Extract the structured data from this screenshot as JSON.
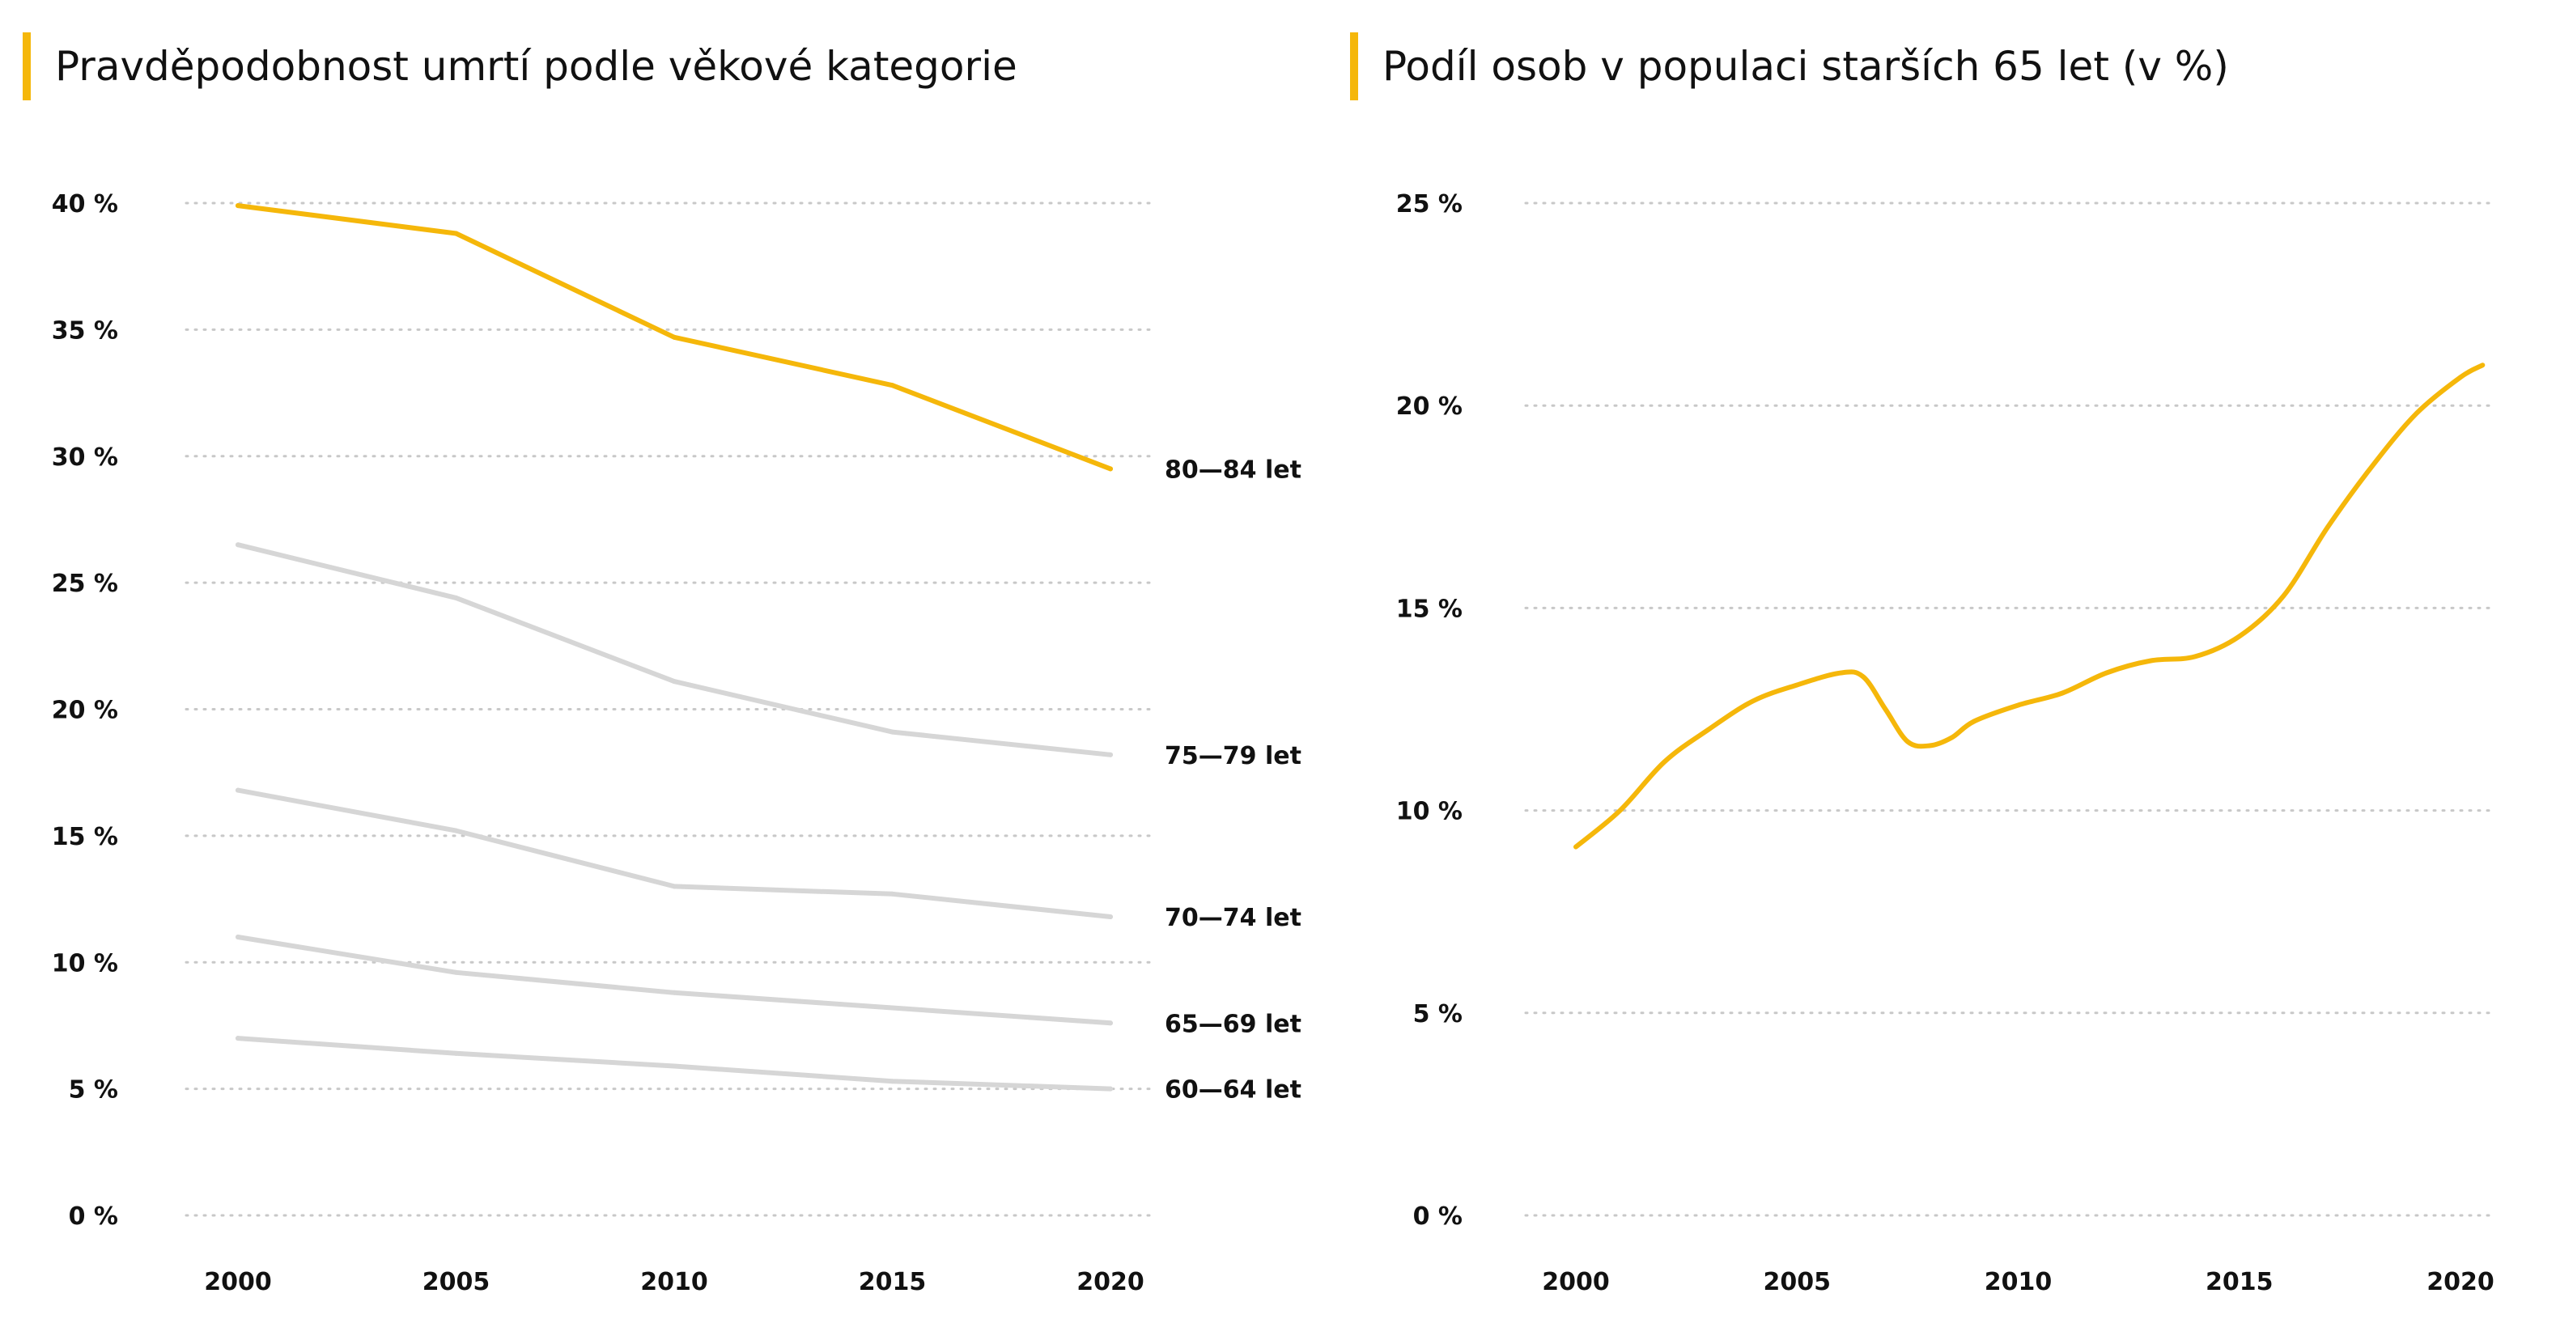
{
  "colors": {
    "accent": "#f5b70a",
    "muted": "#d6d6d6",
    "grid": "#c8c8c8",
    "text": "#111111"
  },
  "chart_data": [
    {
      "type": "line",
      "title": "Pravděpodobnost umrtí podle věkové kategorie",
      "x": [
        2000,
        2005,
        2010,
        2015,
        2020
      ],
      "ytick_labels": [
        "0 %",
        "5 %",
        "10 %",
        "15 %",
        "20 %",
        "25 %",
        "30 %",
        "35 %",
        "40 %"
      ],
      "xtick_labels": [
        "2000",
        "2005",
        "2010",
        "2015",
        "2020"
      ],
      "ylim": [
        0,
        40
      ],
      "grid": true,
      "series": [
        {
          "name": "80–84 let",
          "label": "80—84 let",
          "highlight": true,
          "values": [
            39.9,
            38.8,
            34.7,
            32.8,
            29.5
          ]
        },
        {
          "name": "75–79 let",
          "label": "75—79 let",
          "highlight": false,
          "values": [
            26.5,
            24.4,
            21.1,
            19.1,
            18.2
          ]
        },
        {
          "name": "70–74 let",
          "label": "70—74 let",
          "highlight": false,
          "values": [
            16.8,
            15.2,
            13.0,
            12.7,
            11.8
          ]
        },
        {
          "name": "65–69 let",
          "label": "65—69 let",
          "highlight": false,
          "values": [
            11.0,
            9.6,
            8.8,
            8.2,
            7.6
          ]
        },
        {
          "name": "60–64 let",
          "label": "60—64 let",
          "highlight": false,
          "values": [
            7.0,
            6.4,
            5.9,
            5.3,
            5.0
          ]
        }
      ]
    },
    {
      "type": "line",
      "title": "Podíl osob v populaci starších 65 let (v %)",
      "ytick_labels": [
        "0 %",
        "5 %",
        "10 %",
        "15 %",
        "20 %",
        "25 %"
      ],
      "xtick_labels": [
        "2000",
        "2005",
        "2010",
        "2015",
        "2020"
      ],
      "ylim": [
        0,
        25
      ],
      "xlim": [
        1999,
        2021
      ],
      "grid": true,
      "series": [
        {
          "x": [
            2000,
            2001,
            2002,
            2003,
            2004,
            2005,
            2006,
            2006.5,
            2007,
            2007.5,
            2008,
            2008.5,
            2009,
            2010,
            2011,
            2012,
            2013,
            2014,
            2015,
            2016,
            2017,
            2018,
            2019,
            2020,
            2020.5
          ],
          "values": [
            9.1,
            10.0,
            11.2,
            12.0,
            12.7,
            13.1,
            13.4,
            13.3,
            12.5,
            11.7,
            11.6,
            11.8,
            12.2,
            12.6,
            12.9,
            13.4,
            13.7,
            13.8,
            14.3,
            15.3,
            17.0,
            18.5,
            19.8,
            20.7,
            21.0
          ]
        }
      ]
    }
  ]
}
